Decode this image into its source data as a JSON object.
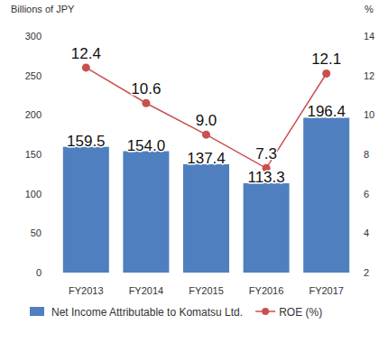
{
  "chart_data": {
    "type": "bar",
    "ylabel": "Billions of JPY",
    "y2label": "%",
    "categories": [
      "FY2013",
      "FY2014",
      "FY2015",
      "FY2016",
      "FY2017"
    ],
    "series": [
      {
        "name": "Net Income Attributable to Komatsu Ltd.",
        "type": "bar",
        "color": "#4f7fbf",
        "values": [
          159.5,
          154.0,
          137.4,
          113.3,
          196.4
        ],
        "value_labels": [
          "159.5",
          "154.0",
          "137.4",
          "113.3",
          "196.4"
        ]
      },
      {
        "name": "ROE (%)",
        "type": "line",
        "axis": "y2",
        "color": "#c9504f",
        "marker": "circle",
        "values": [
          12.4,
          10.6,
          9.0,
          7.3,
          12.1
        ],
        "value_labels": [
          "12.4",
          "10.6",
          "9.0",
          "7.3",
          "12.1"
        ]
      }
    ],
    "ylim": [
      0,
      300
    ],
    "yticks": [
      0,
      50,
      100,
      150,
      200,
      250,
      300
    ],
    "y2lim": [
      2,
      14
    ],
    "y2ticks": [
      2,
      4,
      6,
      8,
      10,
      12,
      14
    ],
    "grid": false,
    "legend": "bottom",
    "data_labels": true
  }
}
